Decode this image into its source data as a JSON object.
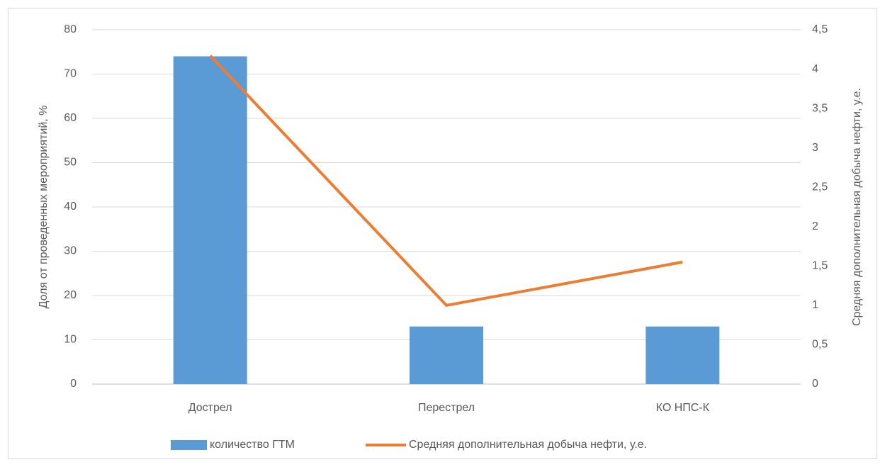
{
  "chart_data": {
    "type": "bar",
    "categories": [
      "Дострел",
      "Перестрел",
      "КО НПС-К"
    ],
    "series": [
      {
        "name": "количество ГТМ",
        "type": "bar",
        "color": "#5b9bd5",
        "values": [
          74,
          13,
          13
        ]
      },
      {
        "name": "Средняя дополнительная добыча нефти, у.е.",
        "type": "line",
        "axis": "y2",
        "color": "#ed7d31",
        "values": [
          4.17,
          1.0,
          1.55
        ]
      }
    ],
    "ylabel": "Доля от проведенных мероприятий, %",
    "y2label": "Средняя дополнительная добыча нефти, у.е.",
    "ylim": [
      0,
      80
    ],
    "yticks": [
      0,
      10,
      20,
      30,
      40,
      50,
      60,
      70,
      80
    ],
    "y2lim": [
      0,
      4.5
    ],
    "y2ticks": [
      0,
      {
        "value": 0.5,
        "label": "0,5"
      },
      1,
      {
        "value": 1.5,
        "label": "1,5"
      },
      2,
      {
        "value": 2.5,
        "label": "2,5"
      },
      3,
      {
        "value": 3.5,
        "label": "3,5"
      },
      4,
      {
        "value": 4.5,
        "label": "4,5"
      }
    ],
    "grid": true,
    "legend": "bottom"
  }
}
